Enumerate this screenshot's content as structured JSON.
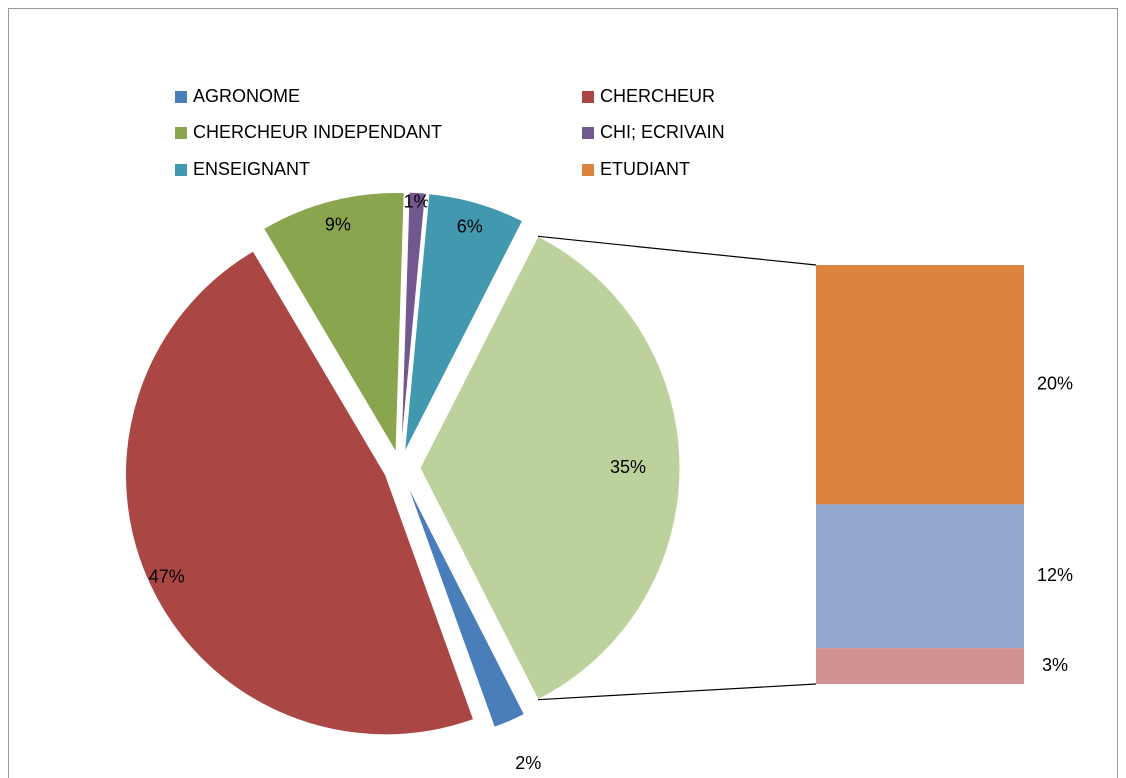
{
  "chart_data": {
    "type": "pie",
    "categories": [
      "AGRONOME",
      "CHERCHEUR",
      "CHERCHEUR INDEPENDANT",
      "CHI; ECRIVAIN",
      "ENSEIGNANT",
      null
    ],
    "values": [
      2,
      47,
      9,
      1,
      6,
      35
    ],
    "value_labels": [
      "2%",
      "47%",
      "9%",
      "1%",
      "6%",
      "35%"
    ],
    "colors": [
      "#4a7ebb",
      "#aa4643",
      "#89a54e",
      "#71588f",
      "#4198af",
      "#bcd19c"
    ],
    "secondary": {
      "type": "bar",
      "categories": [
        "ETUDIANT",
        null,
        null
      ],
      "values": [
        20,
        12,
        3
      ],
      "value_labels": [
        "20%",
        "12%",
        "3%"
      ],
      "colors": [
        "#db843d",
        "#93a9cf",
        "#d19392"
      ]
    }
  }
}
